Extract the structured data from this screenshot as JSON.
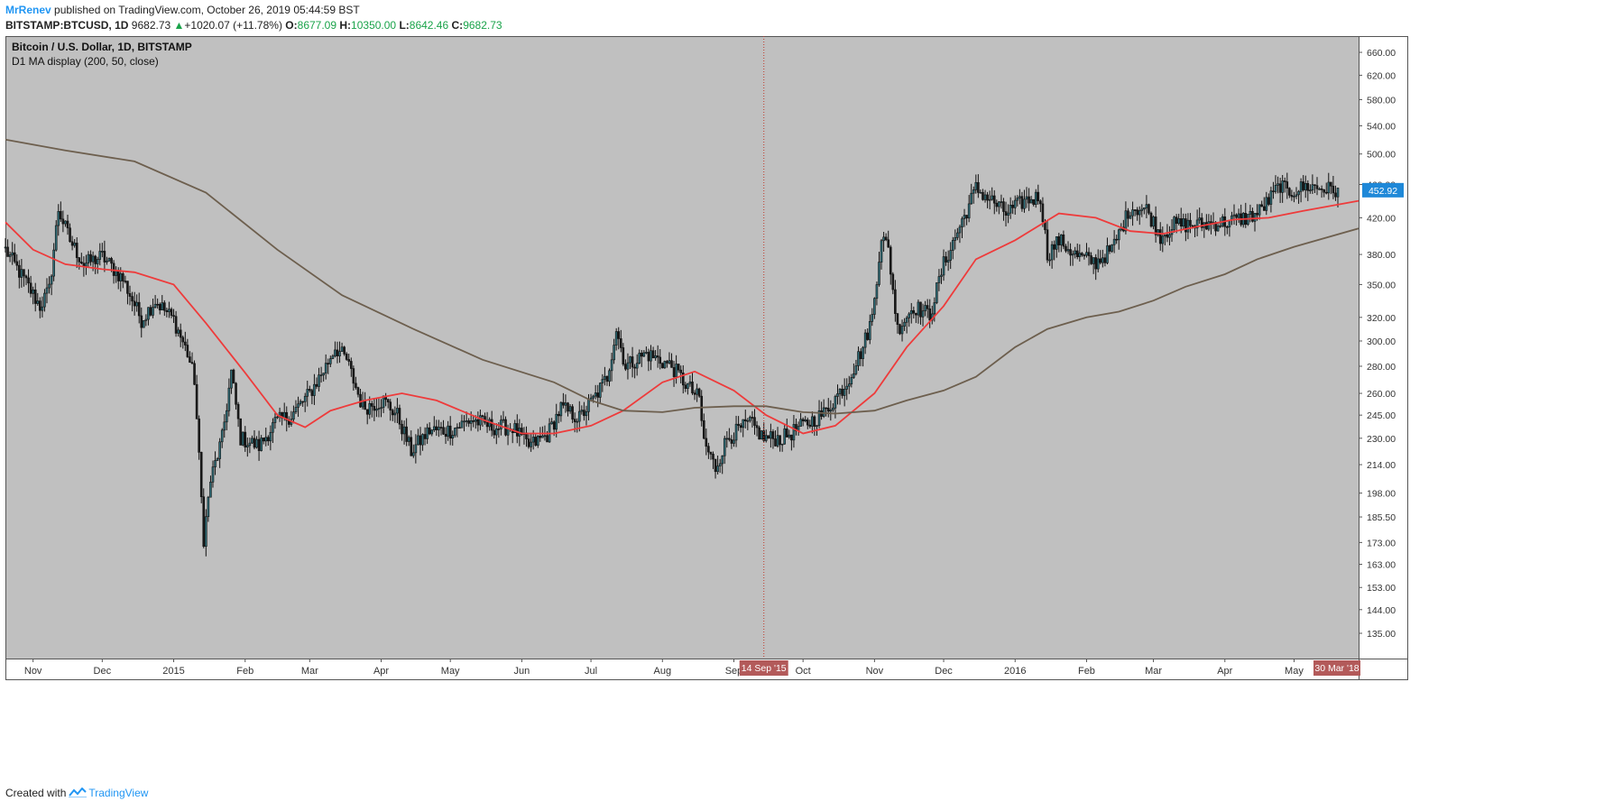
{
  "header": {
    "author": "MrRenev",
    "published_text": "published on TradingView.com, October 26, 2019 05:44:59 BST",
    "symbol": "BITSTAMP:BTCUSD, 1D",
    "last": "9682.73",
    "change": "+1020.07 (+11.78%)",
    "o_label": "O:",
    "o_value": "8677.09",
    "h_label": "H:",
    "h_value": "10350.00",
    "l_label": "L:",
    "l_value": "8642.46",
    "c_label": "C:",
    "c_value": "9682.73"
  },
  "footer": {
    "created_with": "Created with",
    "brand": "TradingView"
  },
  "colors": {
    "background": "#c0c0c0",
    "ma50": "#ee3b3b",
    "ma200": "#6d5f4e",
    "up_candle": "#2e6f7a",
    "down_candle": "#1a1a1a",
    "price_tag": "#1e88d8",
    "crosshair_tag": "#b35a5a"
  },
  "chart_data": {
    "type": "candlestick",
    "title": "Bitcoin / U.S. Dollar, 1D, BITSTAMP",
    "indicator": "D1 MA display (200, 50, close)",
    "scale": "log",
    "x_range": [
      "2014-10-20",
      "2016-05-29"
    ],
    "y_range": [
      126,
      690
    ],
    "x_ticks": [
      {
        "date": "2014-11-01",
        "label": "Nov"
      },
      {
        "date": "2014-12-01",
        "label": "Dec"
      },
      {
        "date": "2015-01-01",
        "label": "2015"
      },
      {
        "date": "2015-02-01",
        "label": "Feb"
      },
      {
        "date": "2015-03-01",
        "label": "Mar"
      },
      {
        "date": "2015-04-01",
        "label": "Apr"
      },
      {
        "date": "2015-05-01",
        "label": "May"
      },
      {
        "date": "2015-06-01",
        "label": "Jun"
      },
      {
        "date": "2015-07-01",
        "label": "Jul"
      },
      {
        "date": "2015-08-01",
        "label": "Aug"
      },
      {
        "date": "2015-09-01",
        "label": "Sep"
      },
      {
        "date": "2015-10-01",
        "label": "Oct"
      },
      {
        "date": "2015-11-01",
        "label": "Nov"
      },
      {
        "date": "2015-12-01",
        "label": "Dec"
      },
      {
        "date": "2016-01-01",
        "label": "2016"
      },
      {
        "date": "2016-02-01",
        "label": "Feb"
      },
      {
        "date": "2016-03-01",
        "label": "Mar"
      },
      {
        "date": "2016-04-01",
        "label": "Apr"
      },
      {
        "date": "2016-05-01",
        "label": "May"
      }
    ],
    "y_ticks": [
      660,
      620,
      580,
      540,
      500,
      460,
      420,
      380,
      350,
      320,
      300,
      280,
      260,
      245,
      230,
      214,
      198,
      185.5,
      173,
      163,
      153,
      144,
      135
    ],
    "y_tick_labels": [
      "660.00",
      "620.00",
      "580.00",
      "540.00",
      "500.00",
      "460.00",
      "420.00",
      "380.00",
      "350.00",
      "320.00",
      "300.00",
      "280.00",
      "260.00",
      "245.00",
      "230.00",
      "214.00",
      "198.00",
      "185.50",
      "173.00",
      "163.00",
      "153.00",
      "144.00",
      "135.00"
    ],
    "last_price": 452.92,
    "last_price_label": "452.92",
    "crosshair": {
      "date": "2015-09-14",
      "label": "14 Sep '15"
    },
    "right_date_label": "30 Mar '18",
    "price_path": [
      {
        "date": "2014-10-20",
        "close": 385
      },
      {
        "date": "2014-10-28",
        "close": 355
      },
      {
        "date": "2014-11-04",
        "close": 330
      },
      {
        "date": "2014-11-08",
        "close": 345
      },
      {
        "date": "2014-11-12",
        "close": 430
      },
      {
        "date": "2014-11-17",
        "close": 395
      },
      {
        "date": "2014-11-23",
        "close": 370
      },
      {
        "date": "2014-12-01",
        "close": 378
      },
      {
        "date": "2014-12-10",
        "close": 355
      },
      {
        "date": "2014-12-18",
        "close": 318
      },
      {
        "date": "2014-12-24",
        "close": 335
      },
      {
        "date": "2015-01-01",
        "close": 318
      },
      {
        "date": "2015-01-07",
        "close": 290
      },
      {
        "date": "2015-01-10",
        "close": 270
      },
      {
        "date": "2015-01-14",
        "close": 175
      },
      {
        "date": "2015-01-17",
        "close": 205
      },
      {
        "date": "2015-01-22",
        "close": 230
      },
      {
        "date": "2015-01-26",
        "close": 275
      },
      {
        "date": "2015-01-30",
        "close": 230
      },
      {
        "date": "2015-02-07",
        "close": 225
      },
      {
        "date": "2015-02-14",
        "close": 240
      },
      {
        "date": "2015-02-21",
        "close": 245
      },
      {
        "date": "2015-03-01",
        "close": 260
      },
      {
        "date": "2015-03-08",
        "close": 280
      },
      {
        "date": "2015-03-12",
        "close": 295
      },
      {
        "date": "2015-03-17",
        "close": 285
      },
      {
        "date": "2015-03-24",
        "close": 250
      },
      {
        "date": "2015-04-02",
        "close": 255
      },
      {
        "date": "2015-04-08",
        "close": 245
      },
      {
        "date": "2015-04-14",
        "close": 222
      },
      {
        "date": "2015-04-22",
        "close": 235
      },
      {
        "date": "2015-05-01",
        "close": 235
      },
      {
        "date": "2015-05-10",
        "close": 242
      },
      {
        "date": "2015-05-20",
        "close": 237
      },
      {
        "date": "2015-05-28",
        "close": 237
      },
      {
        "date": "2015-06-04",
        "close": 225
      },
      {
        "date": "2015-06-12",
        "close": 232
      },
      {
        "date": "2015-06-18",
        "close": 250
      },
      {
        "date": "2015-06-26",
        "close": 243
      },
      {
        "date": "2015-07-03",
        "close": 258
      },
      {
        "date": "2015-07-08",
        "close": 272
      },
      {
        "date": "2015-07-12",
        "close": 310
      },
      {
        "date": "2015-07-16",
        "close": 280
      },
      {
        "date": "2015-07-25",
        "close": 290
      },
      {
        "date": "2015-08-05",
        "close": 280
      },
      {
        "date": "2015-08-12",
        "close": 265
      },
      {
        "date": "2015-08-17",
        "close": 256
      },
      {
        "date": "2015-08-19",
        "close": 228
      },
      {
        "date": "2015-08-24",
        "close": 212
      },
      {
        "date": "2015-08-29",
        "close": 230
      },
      {
        "date": "2015-09-08",
        "close": 240
      },
      {
        "date": "2015-09-14",
        "close": 230
      },
      {
        "date": "2015-09-22",
        "close": 230
      },
      {
        "date": "2015-10-01",
        "close": 238
      },
      {
        "date": "2015-10-10",
        "close": 246
      },
      {
        "date": "2015-10-20",
        "close": 268
      },
      {
        "date": "2015-10-27",
        "close": 295
      },
      {
        "date": "2015-10-31",
        "close": 320
      },
      {
        "date": "2015-11-04",
        "close": 400
      },
      {
        "date": "2015-11-07",
        "close": 385
      },
      {
        "date": "2015-11-11",
        "close": 310
      },
      {
        "date": "2015-11-18",
        "close": 330
      },
      {
        "date": "2015-11-25",
        "close": 322
      },
      {
        "date": "2015-12-01",
        "close": 370
      },
      {
        "date": "2015-12-08",
        "close": 410
      },
      {
        "date": "2015-12-15",
        "close": 455
      },
      {
        "date": "2015-12-22",
        "close": 440
      },
      {
        "date": "2015-12-28",
        "close": 425
      },
      {
        "date": "2016-01-05",
        "close": 440
      },
      {
        "date": "2016-01-12",
        "close": 445
      },
      {
        "date": "2016-01-15",
        "close": 380
      },
      {
        "date": "2016-01-20",
        "close": 395
      },
      {
        "date": "2016-01-28",
        "close": 378
      },
      {
        "date": "2016-02-05",
        "close": 372
      },
      {
        "date": "2016-02-12",
        "close": 385
      },
      {
        "date": "2016-02-20",
        "close": 432
      },
      {
        "date": "2016-02-27",
        "close": 430
      },
      {
        "date": "2016-03-04",
        "close": 400
      },
      {
        "date": "2016-03-10",
        "close": 412
      },
      {
        "date": "2016-03-20",
        "close": 412
      },
      {
        "date": "2016-04-01",
        "close": 415
      },
      {
        "date": "2016-04-10",
        "close": 420
      },
      {
        "date": "2016-04-15",
        "close": 425
      },
      {
        "date": "2016-04-20",
        "close": 440
      },
      {
        "date": "2016-04-25",
        "close": 460
      },
      {
        "date": "2016-04-28",
        "close": 450
      },
      {
        "date": "2016-05-07",
        "close": 458
      },
      {
        "date": "2016-05-14",
        "close": 455
      },
      {
        "date": "2016-05-20",
        "close": 452
      }
    ],
    "series": [
      {
        "name": "MA 50",
        "color": "#ee3b3b",
        "points": [
          {
            "date": "2014-10-20",
            "value": 415
          },
          {
            "date": "2014-11-01",
            "value": 385
          },
          {
            "date": "2014-11-15",
            "value": 370
          },
          {
            "date": "2014-12-01",
            "value": 365
          },
          {
            "date": "2014-12-15",
            "value": 362
          },
          {
            "date": "2015-01-01",
            "value": 350
          },
          {
            "date": "2015-01-15",
            "value": 315
          },
          {
            "date": "2015-02-01",
            "value": 275
          },
          {
            "date": "2015-02-15",
            "value": 245
          },
          {
            "date": "2015-02-27",
            "value": 237
          },
          {
            "date": "2015-03-10",
            "value": 248
          },
          {
            "date": "2015-03-25",
            "value": 255
          },
          {
            "date": "2015-04-10",
            "value": 260
          },
          {
            "date": "2015-04-25",
            "value": 255
          },
          {
            "date": "2015-05-15",
            "value": 242
          },
          {
            "date": "2015-06-01",
            "value": 233
          },
          {
            "date": "2015-06-15",
            "value": 233
          },
          {
            "date": "2015-07-01",
            "value": 238
          },
          {
            "date": "2015-07-15",
            "value": 248
          },
          {
            "date": "2015-08-01",
            "value": 268
          },
          {
            "date": "2015-08-15",
            "value": 276
          },
          {
            "date": "2015-09-01",
            "value": 262
          },
          {
            "date": "2015-09-15",
            "value": 245
          },
          {
            "date": "2015-10-01",
            "value": 233
          },
          {
            "date": "2015-10-15",
            "value": 238
          },
          {
            "date": "2015-11-01",
            "value": 260
          },
          {
            "date": "2015-11-15",
            "value": 295
          },
          {
            "date": "2015-12-01",
            "value": 330
          },
          {
            "date": "2015-12-15",
            "value": 375
          },
          {
            "date": "2016-01-01",
            "value": 395
          },
          {
            "date": "2016-01-20",
            "value": 425
          },
          {
            "date": "2016-02-05",
            "value": 420
          },
          {
            "date": "2016-02-20",
            "value": 405
          },
          {
            "date": "2016-03-05",
            "value": 402
          },
          {
            "date": "2016-03-20",
            "value": 410
          },
          {
            "date": "2016-04-05",
            "value": 418
          },
          {
            "date": "2016-04-20",
            "value": 420
          },
          {
            "date": "2016-05-05",
            "value": 428
          },
          {
            "date": "2016-05-29",
            "value": 440
          }
        ]
      },
      {
        "name": "MA 200",
        "color": "#6d5f4e",
        "points": [
          {
            "date": "2014-10-20",
            "value": 520
          },
          {
            "date": "2014-11-15",
            "value": 505
          },
          {
            "date": "2014-12-15",
            "value": 490
          },
          {
            "date": "2015-01-15",
            "value": 450
          },
          {
            "date": "2015-02-15",
            "value": 385
          },
          {
            "date": "2015-03-15",
            "value": 340
          },
          {
            "date": "2015-04-15",
            "value": 310
          },
          {
            "date": "2015-05-15",
            "value": 285
          },
          {
            "date": "2015-06-15",
            "value": 268
          },
          {
            "date": "2015-07-01",
            "value": 255
          },
          {
            "date": "2015-07-15",
            "value": 248
          },
          {
            "date": "2015-08-01",
            "value": 247
          },
          {
            "date": "2015-08-15",
            "value": 250
          },
          {
            "date": "2015-09-01",
            "value": 251
          },
          {
            "date": "2015-09-15",
            "value": 251
          },
          {
            "date": "2015-10-01",
            "value": 247
          },
          {
            "date": "2015-10-15",
            "value": 246
          },
          {
            "date": "2015-11-01",
            "value": 248
          },
          {
            "date": "2015-11-15",
            "value": 255
          },
          {
            "date": "2015-12-01",
            "value": 262
          },
          {
            "date": "2015-12-15",
            "value": 272
          },
          {
            "date": "2016-01-01",
            "value": 295
          },
          {
            "date": "2016-01-15",
            "value": 310
          },
          {
            "date": "2016-02-01",
            "value": 320
          },
          {
            "date": "2016-02-15",
            "value": 325
          },
          {
            "date": "2016-03-01",
            "value": 335
          },
          {
            "date": "2016-03-15",
            "value": 348
          },
          {
            "date": "2016-04-01",
            "value": 360
          },
          {
            "date": "2016-04-15",
            "value": 375
          },
          {
            "date": "2016-05-01",
            "value": 388
          },
          {
            "date": "2016-05-29",
            "value": 408
          }
        ]
      }
    ]
  }
}
